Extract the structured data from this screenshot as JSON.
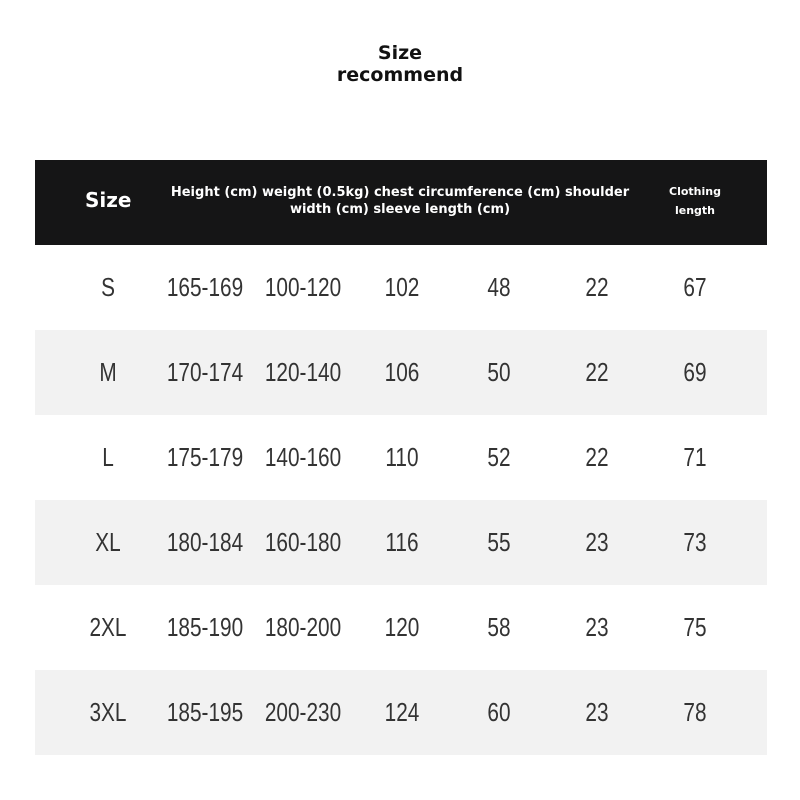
{
  "title": [
    "Size",
    "recommend"
  ],
  "header": {
    "size": "Size",
    "middle": "Height (cm) weight (0.5kg) chest circumference (cm) shoulder width (cm) sleeve length (cm)",
    "length": "Clothing length"
  },
  "rows": [
    [
      "S",
      "165-169",
      "100-120",
      "102",
      "48",
      "22",
      "67"
    ],
    [
      "M",
      "170-174",
      "120-140",
      "106",
      "50",
      "22",
      "69"
    ],
    [
      "L",
      "175-179",
      "140-160",
      "110",
      "52",
      "22",
      "71"
    ],
    [
      "XL",
      "180-184",
      "160-180",
      "116",
      "55",
      "23",
      "73"
    ],
    [
      "2XL",
      "185-190",
      "180-200",
      "120",
      "58",
      "23",
      "75"
    ],
    [
      "3XL",
      "185-195",
      "200-230",
      "124",
      "60",
      "23",
      "78"
    ]
  ]
}
